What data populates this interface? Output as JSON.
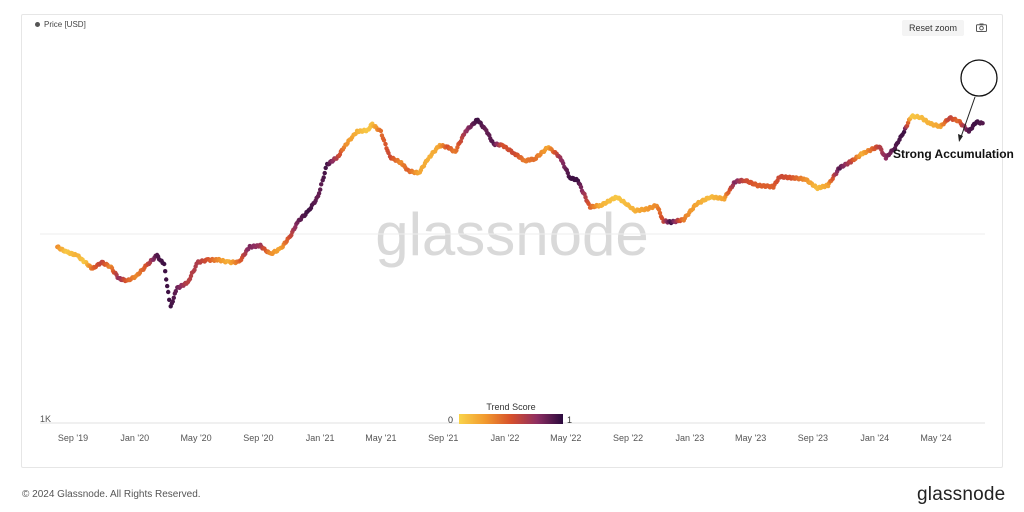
{
  "legend": {
    "label": "Price [USD]"
  },
  "toolbar": {
    "reset_label": "Reset zoom",
    "camera_icon": "camera-icon"
  },
  "watermark": "glassnode",
  "footer": {
    "copyright": "© 2024 Glassnode. All Rights Reserved.",
    "logo": "glassnode"
  },
  "colors": {
    "low": "#f9d34a",
    "mid1": "#f29a2e",
    "mid2": "#d6502c",
    "mid3": "#8e2e62",
    "high": "#2a0a3d"
  },
  "chart_data": {
    "type": "scatter",
    "y_scale": "log",
    "y_tick_labels": [
      "1K"
    ],
    "x_tick_labels": [
      "Sep '19",
      "Jan '20",
      "May '20",
      "Sep '20",
      "Jan '21",
      "May '21",
      "Sep '21",
      "Jan '22",
      "May '22",
      "Sep '22",
      "Jan '23",
      "May '23",
      "Sep '23",
      "Jan '24",
      "May '24"
    ],
    "colorbar": {
      "title": "Trend Score",
      "min_label": "0",
      "max_label": "1",
      "range": [
        0,
        1
      ]
    },
    "annotation": {
      "text": "Strong Accumulation"
    },
    "series": [
      {
        "x": [
          "2019-08-01",
          "2019-08-20",
          "2019-09-10",
          "2019-09-25",
          "2019-10-10",
          "2019-10-28",
          "2019-11-15",
          "2019-12-01",
          "2019-12-18",
          "2020-01-05",
          "2020-01-25",
          "2020-02-14",
          "2020-02-28",
          "2020-03-12",
          "2020-03-25",
          "2020-04-15",
          "2020-05-05",
          "2020-05-25",
          "2020-06-15",
          "2020-07-05",
          "2020-07-25",
          "2020-08-15",
          "2020-09-05",
          "2020-09-25",
          "2020-10-15",
          "2020-11-01",
          "2020-11-20",
          "2020-12-10",
          "2020-12-28",
          "2021-01-15",
          "2021-02-05",
          "2021-02-20",
          "2021-03-15",
          "2021-04-05",
          "2021-04-14",
          "2021-05-01",
          "2021-05-19",
          "2021-06-10",
          "2021-06-25",
          "2021-07-15",
          "2021-08-05",
          "2021-08-25",
          "2021-09-10",
          "2021-09-25",
          "2021-10-15",
          "2021-11-08",
          "2021-11-25",
          "2021-12-10",
          "2021-12-28",
          "2022-01-20",
          "2022-02-10",
          "2022-03-01",
          "2022-03-28",
          "2022-04-20",
          "2022-05-10",
          "2022-05-25",
          "2022-06-18",
          "2022-07-10",
          "2022-08-10",
          "2022-08-28",
          "2022-09-15",
          "2022-10-10",
          "2022-10-28",
          "2022-11-10",
          "2022-11-25",
          "2022-12-20",
          "2023-01-14",
          "2023-02-10",
          "2023-03-10",
          "2023-04-01",
          "2023-04-20",
          "2023-05-15",
          "2023-06-15",
          "2023-06-28",
          "2023-07-20",
          "2023-08-17",
          "2023-09-10",
          "2023-10-01",
          "2023-10-24",
          "2023-11-15",
          "2023-12-08",
          "2024-01-10",
          "2024-01-23",
          "2024-02-10",
          "2024-02-28",
          "2024-03-14",
          "2024-04-01",
          "2024-04-20",
          "2024-05-10",
          "2024-05-28",
          "2024-06-15",
          "2024-07-05",
          "2024-07-20",
          "2024-08-01"
        ],
        "y": [
          11500,
          10700,
          10200,
          9300,
          8500,
          9300,
          8700,
          7400,
          7200,
          7700,
          8900,
          10200,
          9000,
          5000,
          6500,
          7000,
          9300,
          9600,
          9600,
          9300,
          9300,
          11500,
          11700,
          10400,
          11200,
          13000,
          16500,
          19000,
          23000,
          36000,
          40000,
          47000,
          57000,
          58000,
          63000,
          57000,
          40000,
          37000,
          33000,
          32000,
          40000,
          47000,
          46000,
          43000,
          57000,
          67000,
          58000,
          48000,
          47000,
          42000,
          38000,
          39000,
          46000,
          40000,
          30000,
          29000,
          20000,
          20500,
          23000,
          21000,
          19000,
          19500,
          20500,
          16500,
          16200,
          16800,
          20800,
          23000,
          22500,
          28500,
          29000,
          27000,
          26500,
          30500,
          30000,
          29500,
          26000,
          27000,
          34500,
          37500,
          42000,
          46500,
          39500,
          45500,
          57000,
          70500,
          69500,
          63500,
          61000,
          69000,
          66000,
          57000,
          65000,
          64000
        ],
        "trend_score": [
          0.3,
          0.05,
          0.15,
          0.05,
          0.4,
          0.6,
          0.3,
          0.75,
          0.45,
          0.3,
          0.5,
          0.9,
          0.95,
          0.95,
          0.85,
          0.6,
          0.65,
          0.5,
          0.3,
          0.15,
          0.4,
          0.8,
          0.7,
          0.3,
          0.2,
          0.5,
          0.85,
          0.95,
          0.85,
          0.95,
          0.6,
          0.3,
          0.15,
          0.05,
          0.1,
          0.4,
          0.55,
          0.3,
          0.45,
          0.2,
          0.15,
          0.2,
          0.5,
          0.35,
          0.7,
          0.95,
          0.85,
          0.9,
          0.5,
          0.55,
          0.35,
          0.4,
          0.2,
          0.7,
          0.95,
          0.95,
          0.45,
          0.15,
          0.05,
          0.1,
          0.15,
          0.25,
          0.3,
          0.55,
          0.95,
          0.35,
          0.2,
          0.1,
          0.2,
          0.8,
          0.55,
          0.45,
          0.45,
          0.55,
          0.5,
          0.3,
          0.1,
          0.2,
          0.9,
          0.6,
          0.15,
          0.6,
          0.75,
          0.9,
          0.95,
          0.05,
          0.1,
          0.15,
          0.2,
          0.6,
          0.4,
          0.9,
          0.95,
          0.9
        ]
      }
    ]
  }
}
